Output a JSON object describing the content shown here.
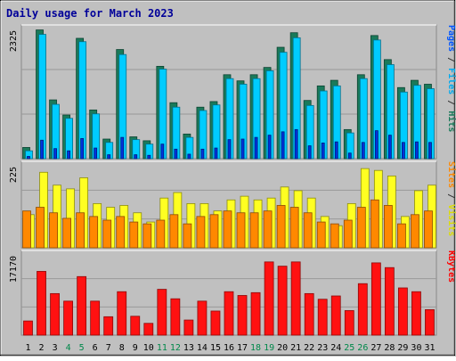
{
  "chart_data": {
    "type": "bar",
    "title": "Daily usage for March 2023",
    "categories": [
      "1",
      "2",
      "3",
      "4",
      "5",
      "6",
      "7",
      "8",
      "9",
      "10",
      "11",
      "12",
      "13",
      "14",
      "15",
      "16",
      "17",
      "18",
      "19",
      "20",
      "21",
      "22",
      "23",
      "24",
      "25",
      "26",
      "27",
      "28",
      "29",
      "30",
      "31"
    ],
    "weekend_days": [
      "4",
      "5",
      "11",
      "12",
      "18",
      "19",
      "25",
      "26"
    ],
    "panels": [
      {
        "id": "hits-panel",
        "max_label": "2325",
        "ymax": 2325,
        "side_labels": [
          {
            "text": "Pages",
            "color": "#0055ff"
          },
          {
            "text": " / ",
            "color": "#333333"
          },
          {
            "text": "Files",
            "color": "#00aaee"
          },
          {
            "text": " / ",
            "color": "#333333"
          },
          {
            "text": "Hits",
            "color": "#1a7a5a"
          }
        ],
        "series": [
          {
            "name": "Hits",
            "color": "#1a7a5a",
            "values": [
              200,
              2300,
              1050,
              780,
              2150,
              870,
              350,
              1950,
              390,
              320,
              1650,
              1000,
              440,
              920,
              1020,
              1500,
              1390,
              1500,
              1630,
              1990,
              2250,
              1040,
              1300,
              1400,
              520,
              1500,
              2200,
              1770,
              1270,
              1400,
              1330
            ]
          },
          {
            "name": "Files",
            "color": "#00ccff",
            "values": [
              140,
              2220,
              970,
              720,
              2090,
              800,
              290,
              1860,
              340,
              260,
              1600,
              920,
              380,
              860,
              960,
              1430,
              1330,
              1430,
              1570,
              1900,
              2160,
              950,
              1210,
              1300,
              460,
              1430,
              2120,
              1680,
              1190,
              1310,
              1250
            ]
          },
          {
            "name": "Pages",
            "color": "#0033dd",
            "values": [
              40,
              330,
              180,
              140,
              360,
              190,
              70,
              380,
              70,
              60,
              260,
              170,
              80,
              170,
              190,
              340,
              350,
              380,
              420,
              480,
              520,
              230,
              280,
              300,
              100,
              290,
              500,
              420,
              290,
              300,
              290
            ]
          }
        ]
      },
      {
        "id": "visits-panel",
        "max_label": "225",
        "ymax": 225,
        "side_labels": [
          {
            "text": "Sites",
            "color": "#ff8800"
          },
          {
            "text": " / ",
            "color": "#333333"
          },
          {
            "text": "Visits",
            "color": "#dddd00"
          }
        ],
        "series": [
          {
            "name": "Visits",
            "color": "#ffff22",
            "values": [
              90,
              205,
              170,
              160,
              190,
              120,
              110,
              115,
              95,
              70,
              135,
              150,
              120,
              120,
              100,
              130,
              140,
              130,
              135,
              165,
              155,
              135,
              85,
              60,
              120,
              215,
              210,
              195,
              85,
              155,
              170
            ]
          },
          {
            "name": "Sites",
            "color": "#ff8800",
            "values": [
              100,
              110,
              95,
              80,
              95,
              85,
              75,
              85,
              70,
              65,
              75,
              90,
              65,
              85,
              90,
              100,
              95,
              95,
              100,
              115,
              110,
              95,
              70,
              65,
              75,
              110,
              130,
              115,
              65,
              90,
              100
            ]
          }
        ]
      },
      {
        "id": "kbytes-panel",
        "max_label": "17170",
        "ymax": 17170,
        "side_labels": [
          {
            "text": "KBytes",
            "color": "#ff0000"
          }
        ],
        "series": [
          {
            "name": "KBytes",
            "color": "#ff1111",
            "values": [
              3000,
              13500,
              8800,
              7200,
              12400,
              7200,
              3900,
              9200,
              4000,
              2500,
              9700,
              7700,
              3200,
              7200,
              5100,
              9200,
              8400,
              9000,
              15500,
              14600,
              15500,
              8800,
              7600,
              8300,
              5200,
              10900,
              15300,
              14300,
              10000,
              9200,
              5400
            ]
          }
        ]
      }
    ]
  }
}
